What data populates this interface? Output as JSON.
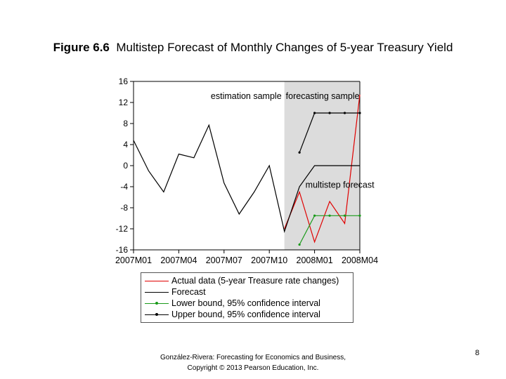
{
  "slide": {
    "figure_number": "Figure 6.6",
    "title": "Multistep Forecast of Monthly Changes of 5-year Treasury Yield",
    "credit_line1": "González-Rivera: Forecasting for Economics and Business,",
    "credit_line2": "Copyright © 2013 Pearson Education, Inc.",
    "page_number": "8"
  },
  "chart_data": {
    "type": "line",
    "title": "",
    "xlabel": "",
    "ylabel": "",
    "ylim": [
      -16,
      16
    ],
    "yticks": [
      16,
      12,
      8,
      4,
      0,
      -4,
      -8,
      -12,
      -16
    ],
    "ytick_labels": [
      "16",
      "12",
      "8",
      "4",
      "0",
      "-4",
      "-8",
      "-12",
      "-16"
    ],
    "x": [
      "2007M01",
      "2007M02",
      "2007M03",
      "2007M04",
      "2007M05",
      "2007M06",
      "2007M07",
      "2007M08",
      "2007M09",
      "2007M10",
      "2007M11",
      "2007M12",
      "2008M01",
      "2008M02",
      "2008M03",
      "2008M04"
    ],
    "xtick_labels": [
      "2007M01",
      "2007M04",
      "2007M07",
      "2007M10",
      "2008M01",
      "2008M04"
    ],
    "xtick_index": [
      0,
      3,
      6,
      9,
      12,
      15
    ],
    "grid": false,
    "shaded_region": {
      "from_index": 10,
      "to_index": 15,
      "color": "#dcdcdc"
    },
    "region_labels": [
      "estimation sample",
      "forecasting sample"
    ],
    "annotations": [
      "multistep forecast"
    ],
    "series": [
      {
        "name": "Actual data (5-year Treasure rate changes)",
        "color": "#e00000",
        "values": [
          null,
          null,
          null,
          null,
          null,
          null,
          null,
          null,
          null,
          null,
          -12.0,
          -5.0,
          -14.5,
          -6.8,
          -11.0,
          13.5
        ]
      },
      {
        "name": "Forecast",
        "color": "#000000",
        "values": [
          4.8,
          -1.0,
          -5.0,
          2.2,
          1.5,
          7.7,
          -3.3,
          -9.2,
          -5.0,
          0.0,
          -12.5,
          -4.0,
          0.0,
          0.0,
          0.0,
          0.0
        ]
      },
      {
        "name": "Lower bound, 95% confidence interval",
        "color": "#1a9a1a",
        "marker": "dot",
        "values": [
          null,
          null,
          null,
          null,
          null,
          null,
          null,
          null,
          null,
          null,
          null,
          -15.0,
          -9.5,
          -9.5,
          -9.5,
          -9.5
        ]
      },
      {
        "name": "Upper bound, 95% confidence interval",
        "color": "#000000",
        "marker": "dot",
        "values": [
          null,
          null,
          null,
          null,
          null,
          null,
          null,
          null,
          null,
          null,
          null,
          2.5,
          10.0,
          10.0,
          10.0,
          10.0
        ]
      }
    ]
  }
}
